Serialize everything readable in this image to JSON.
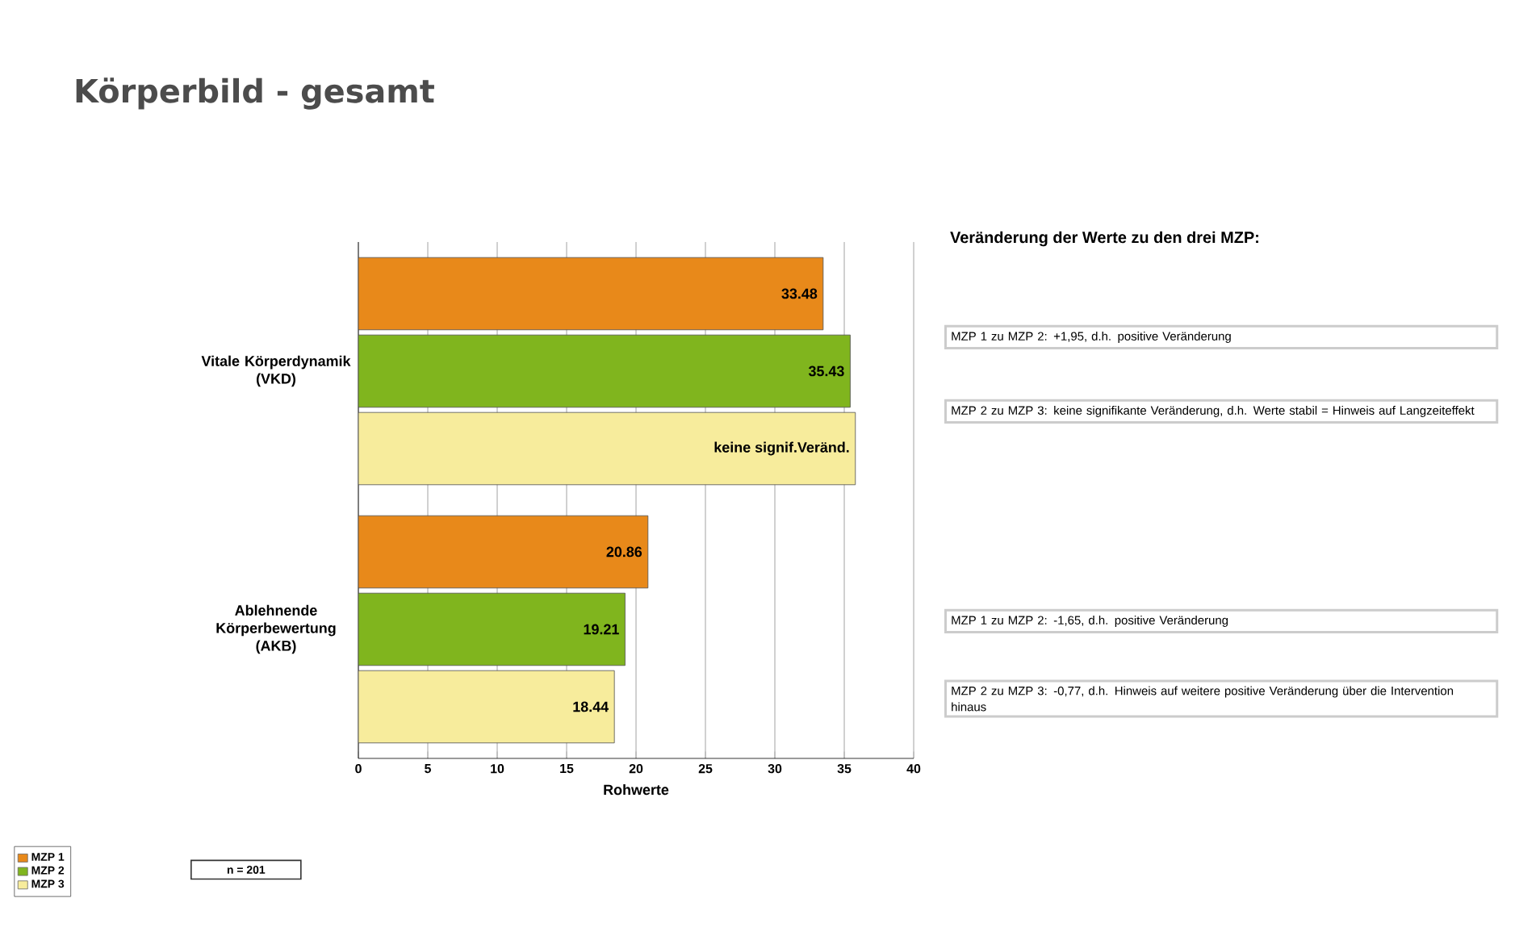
{
  "chart_data": {
    "type": "bar",
    "orientation": "horizontal",
    "title": "Körperbild - gesamt",
    "xlabel": "Rohwerte",
    "categories": [
      "Vitale Körperdynamik (VKD)",
      "Ablehnende Körperbewertung (AKB)"
    ],
    "series": [
      {
        "name": "MZP 1",
        "color": "#e8891a",
        "values": [
          33.48,
          20.86
        ],
        "value_labels": [
          "33.48",
          "20.86"
        ]
      },
      {
        "name": "MZP 2",
        "color": "#80b51e",
        "values": [
          35.43,
          19.21
        ],
        "value_labels": [
          "35.43",
          "19.21"
        ]
      },
      {
        "name": "MZP 3",
        "color": "#f7ec9c",
        "values": [
          35.8,
          18.44
        ],
        "value_labels": [
          "keine signif.Veränd.",
          "18.44"
        ]
      }
    ],
    "xlim": [
      0,
      40
    ],
    "xticks": [
      0,
      5,
      10,
      15,
      20,
      25,
      30,
      35,
      40
    ],
    "grid": "x",
    "legend": "bottom left",
    "annotations": [
      "Veränderung der Werte zu den drei MZP:",
      "MZP 1 zu MZP 2:  +1,95, d.h. positive Veränderung",
      "MZP 2 zu MZP 3:  keine signifikante Veränderung, d.h. Werte stabil = Hinweis auf Langzeiteffekt",
      "MZP 1 zu MZP 2:  -1,65, d.h. positive Veränderung",
      "MZP 2 zu MZP 3:  -0,77, d.h. Hinweis auf weitere positive Veränderung über die Intervention hinaus",
      "n = 201"
    ]
  }
}
